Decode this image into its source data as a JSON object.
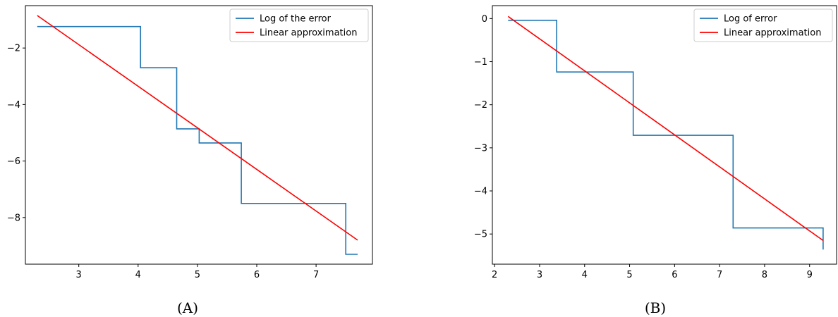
{
  "chart_data": [
    {
      "type": "line",
      "caption": "(A)",
      "xlim": [
        2.1,
        7.95
      ],
      "ylim": [
        -9.65,
        -0.5
      ],
      "xticks": [
        3,
        4,
        5,
        6,
        7
      ],
      "yticks": [
        -2,
        -4,
        -6,
        -8
      ],
      "grid": false,
      "legend": "top-right",
      "series": [
        {
          "name": "Log of the error",
          "color": "#1f77b4",
          "step": true,
          "points": [
            [
              2.3,
              -1.24
            ],
            [
              4.04,
              -1.24
            ],
            [
              4.04,
              -2.7
            ],
            [
              4.65,
              -2.7
            ],
            [
              4.65,
              -4.86
            ],
            [
              5.03,
              -4.86
            ],
            [
              5.03,
              -5.36
            ],
            [
              5.74,
              -5.36
            ],
            [
              5.74,
              -7.5
            ],
            [
              7.5,
              -7.5
            ],
            [
              7.5,
              -9.3
            ],
            [
              7.7,
              -9.3
            ]
          ]
        },
        {
          "name": "Linear approximation",
          "color": "#ff0000",
          "points": [
            [
              2.3,
              -0.85
            ],
            [
              7.7,
              -8.8
            ]
          ]
        }
      ]
    },
    {
      "type": "line",
      "caption": "(B)",
      "xlim": [
        1.95,
        9.6
      ],
      "ylim": [
        -5.7,
        0.3
      ],
      "xticks": [
        2,
        3,
        4,
        5,
        6,
        7,
        8,
        9
      ],
      "yticks": [
        0,
        -1,
        -2,
        -3,
        -4,
        -5
      ],
      "grid": false,
      "legend": "top-right",
      "series": [
        {
          "name": "Log of error",
          "color": "#1f77b4",
          "step": true,
          "points": [
            [
              2.3,
              -0.04
            ],
            [
              3.38,
              -0.04
            ],
            [
              3.38,
              -1.24
            ],
            [
              5.08,
              -1.24
            ],
            [
              5.08,
              -2.71
            ],
            [
              7.3,
              -2.71
            ],
            [
              7.3,
              -4.86
            ],
            [
              9.3,
              -4.86
            ],
            [
              9.3,
              -5.36
            ]
          ]
        },
        {
          "name": "Linear approximation",
          "color": "#ff0000",
          "points": [
            [
              2.3,
              0.05
            ],
            [
              9.3,
              -5.15
            ]
          ]
        }
      ]
    }
  ]
}
